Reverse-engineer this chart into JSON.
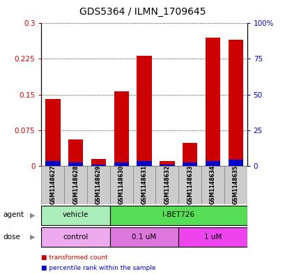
{
  "title": "GDS5364 / ILMN_1709645",
  "samples": [
    "GSM1148627",
    "GSM1148628",
    "GSM1148629",
    "GSM1148630",
    "GSM1148631",
    "GSM1148632",
    "GSM1148633",
    "GSM1148634",
    "GSM1148635"
  ],
  "red_values": [
    0.14,
    0.055,
    0.015,
    0.157,
    0.232,
    0.01,
    0.048,
    0.27,
    0.265
  ],
  "blue_values": [
    0.01,
    0.007,
    0.003,
    0.007,
    0.01,
    0.003,
    0.007,
    0.01,
    0.013
  ],
  "ylim_left": [
    0,
    0.3
  ],
  "ylim_right": [
    0,
    100
  ],
  "yticks_left": [
    0,
    0.075,
    0.15,
    0.225,
    0.3
  ],
  "ytick_labels_left": [
    "0",
    "0.075",
    "0.15",
    "0.225",
    "0.3"
  ],
  "yticks_right": [
    0,
    25,
    50,
    75,
    100
  ],
  "ytick_labels_right": [
    "0",
    "25",
    "50",
    "75",
    "100%"
  ],
  "bar_color_red": "#cc0000",
  "bar_color_blue": "#0000cc",
  "bar_width": 0.65,
  "agent_labels": [
    {
      "label": "vehicle",
      "start": 0,
      "end": 2,
      "color": "#aaeebb"
    },
    {
      "label": "I-BET726",
      "start": 3,
      "end": 8,
      "color": "#55dd55"
    }
  ],
  "dose_labels": [
    {
      "label": "control",
      "start": 0,
      "end": 2,
      "color": "#eeaaee"
    },
    {
      "label": "0.1 uM",
      "start": 3,
      "end": 5,
      "color": "#dd77dd"
    },
    {
      "label": "1 uM",
      "start": 6,
      "end": 8,
      "color": "#ee44ee"
    }
  ],
  "legend_items": [
    {
      "label": "transformed count",
      "color": "#cc0000"
    },
    {
      "label": "percentile rank within the sample",
      "color": "#0000cc"
    }
  ],
  "tick_color_left": "#cc0000",
  "tick_color_right": "#0000bb",
  "bg_color": "#ffffff",
  "grid_color": "#000000",
  "sample_box_color": "#cccccc",
  "title_fontsize": 10,
  "label_fontsize": 7.5
}
